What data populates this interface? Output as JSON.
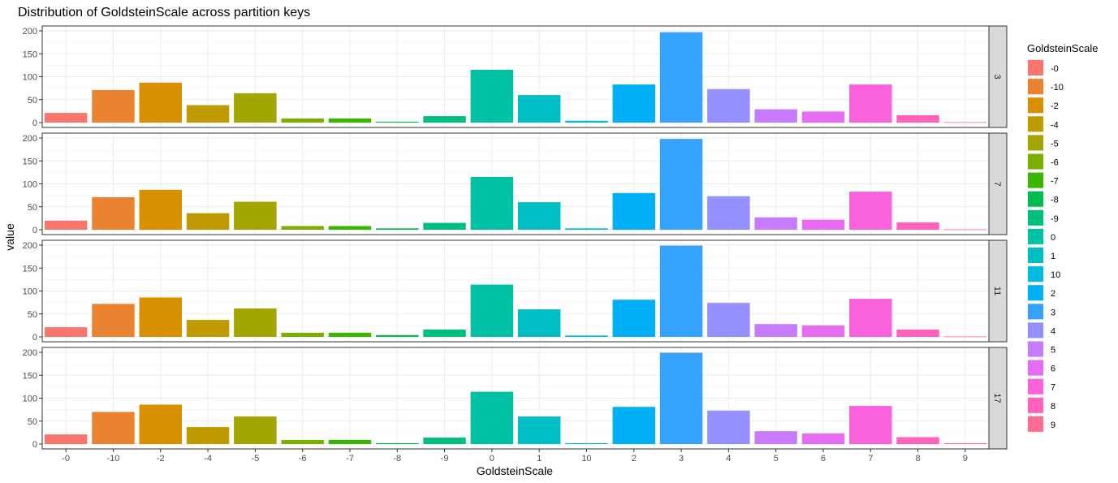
{
  "chart_data": {
    "type": "bar",
    "title": "Distribution of GoldsteinScale across partition keys",
    "xlabel": "GoldsteinScale",
    "ylabel": "value",
    "ylim": [
      0,
      200
    ],
    "yticks": [
      0,
      50,
      100,
      150,
      200
    ],
    "grid": true,
    "legend_position": "right",
    "legend_title": "GoldsteinScale",
    "categories": [
      "-0",
      "-10",
      "-2",
      "-4",
      "-5",
      "-6",
      "-7",
      "-8",
      "-9",
      "0",
      "1",
      "10",
      "2",
      "3",
      "4",
      "5",
      "6",
      "7",
      "8",
      "9"
    ],
    "colors": [
      "#F8766D",
      "#EA8331",
      "#D89000",
      "#C09B00",
      "#A3A500",
      "#7CAE00",
      "#39B600",
      "#00BB4E",
      "#00BF7D",
      "#00C1A3",
      "#00BFC4",
      "#00BAE0",
      "#00B0F6",
      "#35A2FF",
      "#9590FF",
      "#C77CFF",
      "#E76BF3",
      "#FA62DB",
      "#FF62BC",
      "#FF6C91"
    ],
    "panels": [
      {
        "strip": "3",
        "values": [
          21,
          71,
          87,
          38,
          64,
          9,
          9,
          2,
          14,
          115,
          60,
          4,
          83,
          197,
          73,
          29,
          24,
          83,
          16,
          1
        ]
      },
      {
        "strip": "7",
        "values": [
          20,
          71,
          87,
          36,
          61,
          8,
          8,
          3,
          15,
          115,
          60,
          3,
          80,
          198,
          73,
          27,
          22,
          83,
          16,
          1
        ]
      },
      {
        "strip": "11",
        "values": [
          21,
          72,
          86,
          37,
          62,
          9,
          9,
          4,
          16,
          114,
          60,
          3,
          81,
          199,
          74,
          28,
          25,
          83,
          16,
          1
        ]
      },
      {
        "strip": "17",
        "values": [
          21,
          70,
          86,
          37,
          60,
          9,
          9,
          2,
          14,
          114,
          60,
          2,
          81,
          199,
          73,
          28,
          23,
          83,
          15,
          2
        ]
      }
    ]
  }
}
